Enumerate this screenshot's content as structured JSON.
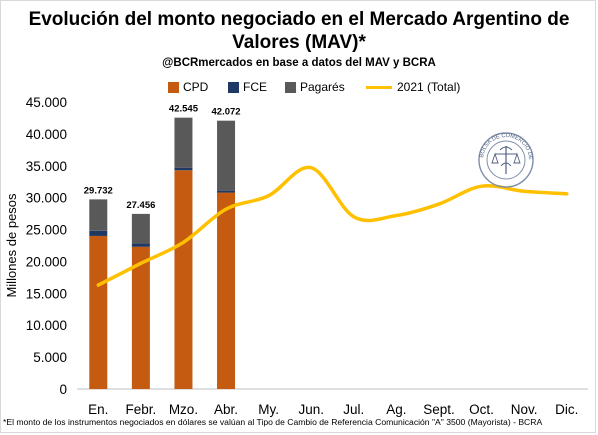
{
  "title_line1": "Evolución del monto negociado en el Mercado Argentino de",
  "title_line2": "Valores (MAV)*",
  "subtitle": "@BCRmercados  en base a datos del MAV y BCRA",
  "footnote": "*El monto de los instrumentos negociados en dólares se valúan al Tipo de Cambio de Referencia Comunicación \"A\" 3500  (Mayorista)  - BCRA",
  "logo_text": "BOLSA DE COMERCIO DE ROSARIO",
  "colors": {
    "cpd": "#c55a11",
    "fce": "#1f3864",
    "pagares": "#595959",
    "line2021": "#ffc000"
  },
  "chart_data": {
    "type": "bar",
    "categories": [
      "En.",
      "Febr.",
      "Mzo.",
      "Abr.",
      "My.",
      "Jun.",
      "Jul.",
      "Ag.",
      "Sept.",
      "Oct.",
      "Nov.",
      "Dic."
    ],
    "series": [
      {
        "name": "CPD",
        "kind": "bar",
        "values": [
          24000,
          22300,
          34300,
          30800,
          null,
          null,
          null,
          null,
          null,
          null,
          null,
          null
        ]
      },
      {
        "name": "FCE",
        "kind": "bar",
        "values": [
          800,
          500,
          400,
          300,
          null,
          null,
          null,
          null,
          null,
          null,
          null,
          null
        ]
      },
      {
        "name": "Pagarés",
        "kind": "bar",
        "values": [
          4932,
          4656,
          7845,
          10972,
          null,
          null,
          null,
          null,
          null,
          null,
          null,
          null
        ]
      },
      {
        "name": "2021 (Total)",
        "kind": "line",
        "values": [
          16300,
          19700,
          23000,
          28200,
          30300,
          34700,
          27000,
          27200,
          29000,
          31800,
          31000,
          30600
        ]
      }
    ],
    "totals": [
      "29.732",
      "27.456",
      "42.545",
      "42.072"
    ],
    "ylabel": "Millones de pesos",
    "ylim": [
      0,
      45000
    ],
    "yticks": [
      "0",
      "5.000",
      "10.000",
      "15.000",
      "20.000",
      "25.000",
      "30.000",
      "35.000",
      "40.000",
      "45.000"
    ],
    "legend": "top",
    "grid": false
  }
}
